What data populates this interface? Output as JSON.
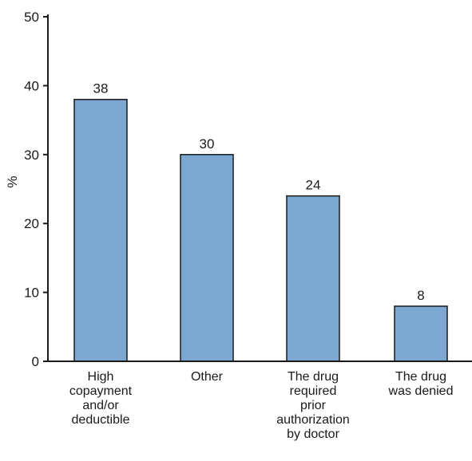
{
  "chart_data": {
    "type": "bar",
    "title": "",
    "xlabel": "",
    "ylabel": "%",
    "ylim": [
      0,
      50
    ],
    "yticks": [
      0,
      10,
      20,
      30,
      40,
      50
    ],
    "grid": false,
    "bar_color": "#7BA7D0",
    "bar_edge_color": "#1a1a1a",
    "categories": [
      [
        "High",
        "copayment",
        "and/or",
        "deductible"
      ],
      [
        "Other"
      ],
      [
        "The drug",
        "required",
        "prior",
        "authorization",
        "by doctor"
      ],
      [
        "The drug",
        "was denied"
      ]
    ],
    "values": [
      38,
      30,
      24,
      8
    ],
    "data_labels": [
      "38",
      "30",
      "24",
      "8"
    ]
  }
}
